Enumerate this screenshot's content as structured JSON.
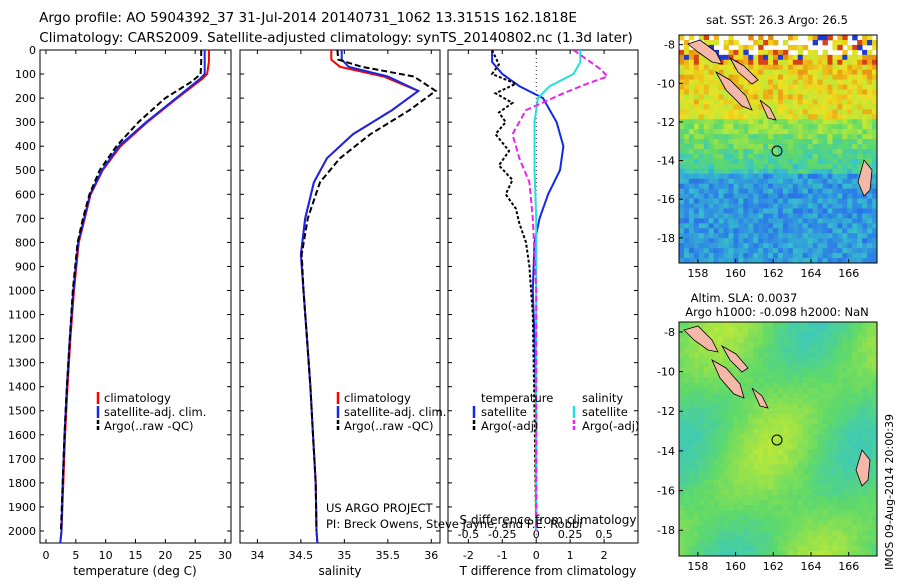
{
  "title_line1": "Argo profile: AO 5904392_37 31-Jul-2014 20140731_1062 13.3151S 162.1818E",
  "title_line2": "Climatology: CARS2009. Satellite-adjusted climatology: synTS_20140802.nc (1.3d later)",
  "credit_line1": "US ARGO PROJECT",
  "credit_line2": "PI: Breck Owens, Steve Jayne, and P.E. Robbi",
  "timestamp": "IMOS 09-Aug-2014 20:00:39",
  "map_top_title": "sat. SST: 26.3 Argo: 26.5",
  "map_bottom_title1": "Altim. SLA: 0.0037",
  "map_bottom_title2": "Argo h1000: -0.098 h2000: NaN",
  "colors": {
    "climatology": "#ff0000",
    "satellite": "#1428e6",
    "argo": "#000000",
    "sal_satellite": "#22e0e0",
    "sal_argo": "#ee22ee"
  },
  "chart_data": [
    {
      "type": "line",
      "xlabel": "temperature (deg C)",
      "ylabel": "",
      "xlim": [
        -1,
        31
      ],
      "ylim": [
        2050,
        0
      ],
      "xticks": [
        0,
        5,
        10,
        15,
        20,
        25,
        30
      ],
      "yticks": [
        0,
        100,
        200,
        300,
        400,
        500,
        600,
        700,
        800,
        900,
        1000,
        1100,
        1200,
        1300,
        1400,
        1500,
        1600,
        1700,
        1800,
        1900,
        2000
      ],
      "legend": [
        "climatology",
        "satellite-adj. clim.",
        "Argo(..raw -QC)"
      ],
      "series": [
        {
          "name": "climatology",
          "x": [
            27.3,
            27.3,
            27.0,
            26.2,
            22.0,
            17.0,
            12.5,
            9.5,
            7.5,
            6.5,
            5.5,
            4.7,
            4.1,
            3.6,
            3.2,
            2.9,
            2.6,
            2.4
          ],
          "y": [
            0,
            50,
            100,
            120,
            200,
            300,
            400,
            500,
            600,
            700,
            800,
            1000,
            1200,
            1400,
            1600,
            1800,
            2000,
            2050
          ]
        },
        {
          "name": "satellite-adj. clim.",
          "x": [
            26.6,
            26.6,
            26.6,
            25.8,
            21.8,
            16.8,
            12.2,
            9.4,
            7.4,
            6.4,
            5.4,
            4.6,
            4.0,
            3.5,
            3.1,
            2.8,
            2.6,
            2.4
          ],
          "y": [
            0,
            50,
            100,
            120,
            200,
            300,
            400,
            500,
            600,
            700,
            800,
            1000,
            1200,
            1400,
            1600,
            1800,
            2000,
            2050
          ]
        },
        {
          "name": "Argo(..raw -QC)",
          "x": [
            26.0,
            26.0,
            25.9,
            24.5,
            20.0,
            15.5,
            11.8,
            9.0,
            7.3,
            6.2,
            5.3,
            4.5,
            4.0,
            3.5,
            3.1,
            2.8,
            2.5
          ],
          "y": [
            0,
            50,
            100,
            130,
            200,
            300,
            400,
            500,
            600,
            700,
            800,
            1000,
            1200,
            1400,
            1600,
            1800,
            2000
          ]
        }
      ]
    },
    {
      "type": "line",
      "xlabel": "salinity",
      "ylabel": "",
      "xlim": [
        33.8,
        36.1
      ],
      "ylim": [
        2050,
        0
      ],
      "xticks": [
        34,
        34.5,
        35,
        35.5,
        36
      ],
      "yticks": [
        0,
        100,
        200,
        300,
        400,
        500,
        600,
        700,
        800,
        900,
        1000,
        1100,
        1200,
        1300,
        1400,
        1500,
        1600,
        1700,
        1800,
        1900,
        2000
      ],
      "legend": [
        "climatology",
        "satellite-adj. clim.",
        "Argo(..raw -QC)"
      ],
      "series": [
        {
          "name": "climatology",
          "x": [
            34.85,
            34.85,
            34.95,
            35.45,
            35.85,
            35.55,
            35.1,
            34.8,
            34.65,
            34.55,
            34.5,
            34.53,
            34.57,
            34.61,
            34.64,
            34.67,
            34.68,
            34.69
          ],
          "y": [
            0,
            40,
            70,
            110,
            170,
            250,
            350,
            450,
            550,
            700,
            850,
            1000,
            1200,
            1400,
            1600,
            1800,
            2000,
            2050
          ]
        },
        {
          "name": "satellite-adj. clim.",
          "x": [
            34.97,
            34.97,
            35.05,
            35.5,
            35.85,
            35.55,
            35.1,
            34.8,
            34.65,
            34.55,
            34.5,
            34.53,
            34.57,
            34.61,
            34.64,
            34.67,
            34.68,
            34.69
          ],
          "y": [
            0,
            40,
            70,
            110,
            170,
            250,
            350,
            450,
            550,
            700,
            850,
            1000,
            1200,
            1400,
            1600,
            1800,
            2000,
            2050
          ]
        },
        {
          "name": "Argo(..raw -QC)",
          "x": [
            34.92,
            34.93,
            35.2,
            35.8,
            36.05,
            35.75,
            35.3,
            34.95,
            34.72,
            34.58,
            34.51,
            34.53,
            34.57,
            34.61,
            34.64,
            34.67,
            34.68
          ],
          "y": [
            0,
            40,
            70,
            110,
            170,
            250,
            350,
            450,
            550,
            700,
            850,
            1000,
            1200,
            1400,
            1600,
            1800,
            2000
          ]
        }
      ]
    },
    {
      "type": "line",
      "xlabel": "T difference from climatology",
      "xlabel_top": "S difference from climatology",
      "ylabel": "",
      "xlim": [
        -2.6,
        3.0
      ],
      "ylim": [
        2050,
        0
      ],
      "xticks": [
        -2,
        -1,
        0,
        1,
        2
      ],
      "xticks_top": [
        -0.5,
        -0.25,
        0,
        0.25,
        0.5
      ],
      "yticks": [
        0,
        100,
        200,
        300,
        400,
        500,
        600,
        700,
        800,
        900,
        1000,
        1100,
        1200,
        1300,
        1400,
        1500,
        1600,
        1700,
        1800,
        1900,
        2000
      ],
      "legend_left_title": "temperature",
      "legend_left": [
        "satellite",
        "Argo(-adj)"
      ],
      "legend_right_title": "salinity",
      "legend_right": [
        "satellite",
        "Argo(-adj)"
      ],
      "series": [
        {
          "name": "temperature satellite",
          "x": [
            -1.3,
            -1.3,
            -1.0,
            -0.5,
            0.2,
            0.6,
            0.8,
            0.7,
            0.35,
            0.1,
            -0.05,
            -0.1,
            -0.05,
            0,
            0,
            0
          ],
          "y": [
            0,
            50,
            100,
            150,
            200,
            300,
            400,
            500,
            600,
            700,
            800,
            1000,
            1200,
            1500,
            1800,
            2000
          ]
        },
        {
          "name": "temperature Argo(-adj)",
          "x": [
            -1.3,
            -1.1,
            -1.3,
            -0.6,
            -1.2,
            -0.7,
            -1.1,
            -0.9,
            -1.2,
            -0.8,
            -1.1,
            -0.7,
            -0.9,
            -0.6,
            -0.5,
            -0.3,
            -0.2,
            -0.1,
            -0.05,
            0
          ],
          "y": [
            0,
            60,
            100,
            140,
            180,
            220,
            260,
            300,
            350,
            420,
            480,
            540,
            600,
            660,
            720,
            800,
            900,
            1100,
            1500,
            2000
          ]
        },
        {
          "name": "salinity satellite",
          "x": [
            1.3,
            1.3,
            1.1,
            0.4,
            0.05,
            -0.05,
            -0.05,
            0,
            0,
            0,
            0
          ],
          "y": [
            0,
            50,
            100,
            150,
            200,
            300,
            500,
            700,
            1000,
            1500,
            2000
          ]
        },
        {
          "name": "salinity Argo(-adj)",
          "x": [
            1.1,
            1.6,
            1.9,
            2.1,
            1.5,
            0.8,
            -0.3,
            -0.7,
            -0.5,
            -0.2,
            -0.1,
            0,
            0
          ],
          "y": [
            0,
            50,
            80,
            110,
            140,
            180,
            250,
            350,
            450,
            550,
            700,
            1000,
            2000
          ]
        }
      ]
    },
    {
      "type": "heatmap",
      "title": "sat. SST: 26.3 Argo: 26.5",
      "xlim": [
        157,
        167.5
      ],
      "ylim": [
        -19.3,
        -7.5
      ],
      "xticks": [
        158,
        160,
        162,
        164,
        166
      ],
      "yticks": [
        -8,
        -10,
        -12,
        -14,
        -16,
        -18
      ],
      "marker": {
        "lon": 162.18,
        "lat": -13.32
      }
    },
    {
      "type": "heatmap",
      "title": "Altim. SLA: 0.0037",
      "xlim": [
        157,
        167.5
      ],
      "ylim": [
        -19.3,
        -7.5
      ],
      "xticks": [
        158,
        160,
        162,
        164,
        166
      ],
      "yticks": [
        -8,
        -10,
        -12,
        -14,
        -16,
        -18
      ],
      "marker": {
        "lon": 162.18,
        "lat": -13.32
      }
    }
  ]
}
